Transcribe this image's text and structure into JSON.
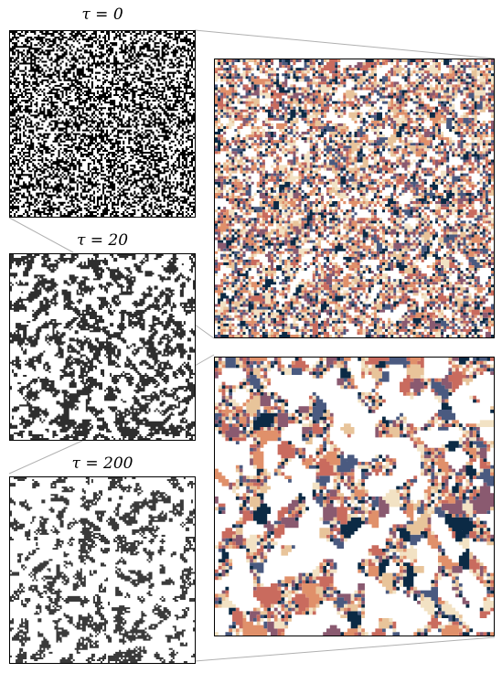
{
  "labels": {
    "tau0": "τ = 0",
    "tau20": "τ = 20",
    "tau200": "τ = 200"
  },
  "colors": {
    "ink": "#000000",
    "dark_gray": "#3a3a3a",
    "connector": "#b0b0b0",
    "palette": [
      "#0b2a45",
      "#4a5a80",
      "#8a5a70",
      "#c96b5e",
      "#e0906a",
      "#e8c49a",
      "#f2e2c4"
    ]
  },
  "panels": [
    {
      "id": "tau0-map",
      "style": "noise",
      "density": 0.5
    },
    {
      "id": "tau20-map",
      "style": "coarsening",
      "density": 0.4
    },
    {
      "id": "tau200-map",
      "style": "coarsening",
      "density": 0.35
    },
    {
      "id": "zoom-top",
      "style": "colored-fine"
    },
    {
      "id": "zoom-bottom",
      "style": "colored-coarse"
    }
  ]
}
